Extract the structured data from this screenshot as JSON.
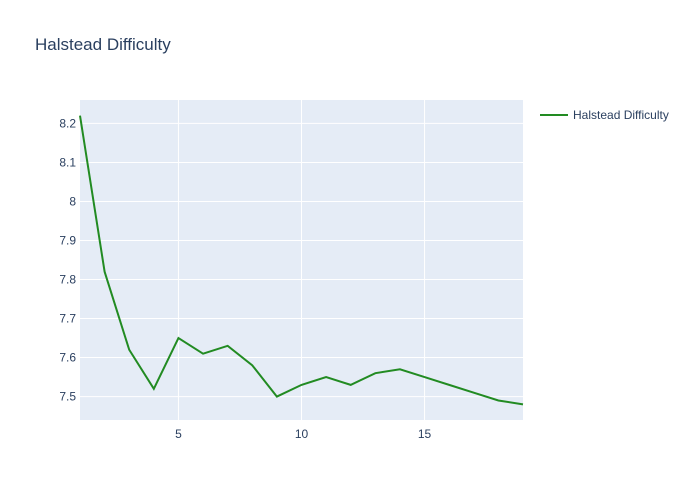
{
  "chart_data": {
    "type": "line",
    "title": "Halstead Difficulty",
    "xlabel": "",
    "ylabel": "",
    "xlim": [
      1,
      19
    ],
    "ylim": [
      7.44,
      8.26
    ],
    "x_ticks": [
      5,
      10,
      15
    ],
    "y_ticks": [
      7.5,
      7.6,
      7.7,
      7.8,
      7.9,
      8,
      8.1,
      8.2
    ],
    "y_tick_labels": [
      "7.5",
      "7.6",
      "7.7",
      "7.8",
      "7.9",
      "8",
      "8.1",
      "8.2"
    ],
    "grid": true,
    "legend_position": "top-right",
    "series": [
      {
        "name": "Halstead Difficulty",
        "color": "#228b22",
        "x": [
          1,
          2,
          3,
          4,
          5,
          6,
          7,
          8,
          9,
          10,
          11,
          12,
          13,
          14,
          15,
          16,
          17,
          18,
          19
        ],
        "values": [
          8.22,
          7.82,
          7.62,
          7.52,
          7.65,
          7.61,
          7.63,
          7.58,
          7.5,
          7.53,
          7.55,
          7.53,
          7.56,
          7.57,
          7.55,
          7.53,
          7.51,
          7.49,
          7.48
        ]
      }
    ]
  },
  "colors": {
    "plot_background": "#e5ecf6",
    "grid": "#ffffff",
    "text": "#2a3f5f"
  }
}
